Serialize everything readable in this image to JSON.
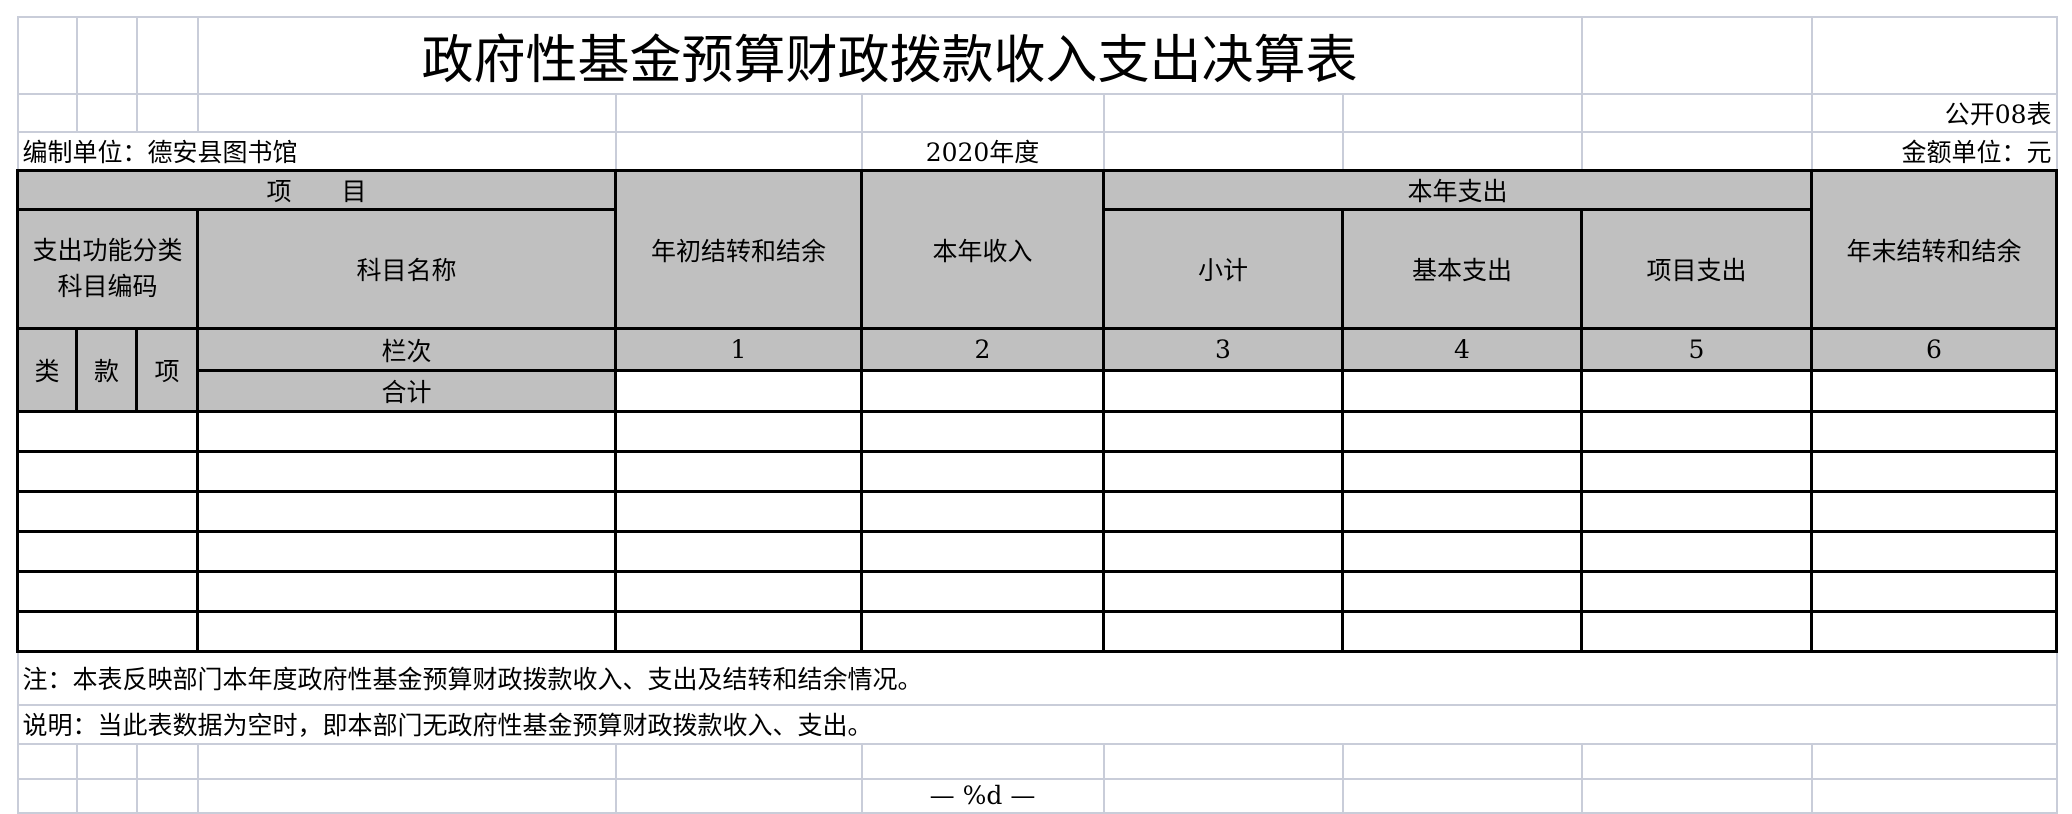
{
  "title": "政府性基金预算财政拨款收入支出决算表",
  "table_code": "公开08表",
  "unit_label": "编制单位：德安县图书馆",
  "year": "2020年度",
  "amount_unit": "金额单位：元",
  "header": {
    "item": "项　　目",
    "opening_balance": "年初结转和结余",
    "current_income": "本年收入",
    "current_expense": "本年支出",
    "closing_balance": "年末结转和结余",
    "function_code": "支出功能分类科目编码",
    "subject_name": "科目名称",
    "subtotal": "小计",
    "basic_expense": "基本支出",
    "project_expense": "项目支出",
    "class": "类",
    "section": "款",
    "item_col": "项",
    "column_no": "栏次",
    "total": "合计",
    "col_numbers": [
      "1",
      "2",
      "3",
      "4",
      "5",
      "6"
    ]
  },
  "rows": [
    [],
    [],
    [],
    [],
    [],
    []
  ],
  "note": "注：本表反映部门本年度政府性基金预算财政拨款收入、支出及结转和结余情况。",
  "explanation": "说明：当此表数据为空时，即本部门无政府性基金预算财政拨款收入、支出。",
  "page_number": "— %d —",
  "colors": {
    "header_fill": "#c0c0c0",
    "gridline": "#c9cdd9",
    "border": "#000000"
  }
}
